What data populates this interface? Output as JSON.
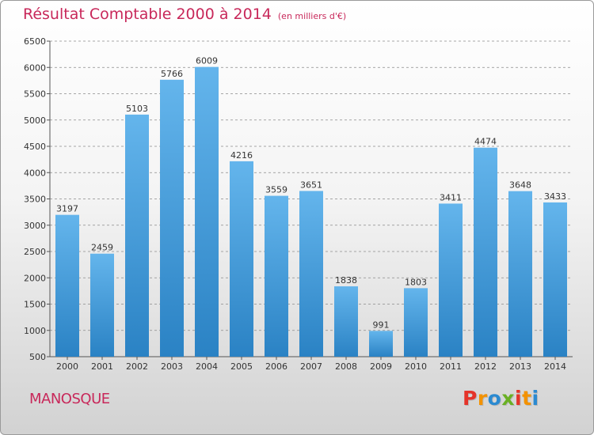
{
  "header": {
    "title": "Résultat Comptable 2000 à 2014",
    "unit_note": "(en milliers d'€)"
  },
  "footer": {
    "city": "MANOSQUE",
    "brand_letters": [
      "P",
      "r",
      "o",
      "x",
      "i",
      "t",
      "i"
    ],
    "brand_colors": [
      "#e5342a",
      "#f39200",
      "#2b8ad1",
      "#6ab023",
      "#e5342a",
      "#f39200",
      "#2b8ad1"
    ]
  },
  "colors": {
    "bar_top": "#64b5ec",
    "bar_bottom": "#2a82c4",
    "title": "#c8285a",
    "grid": "#8a8a8a"
  },
  "chart_data": {
    "type": "bar",
    "title": "Résultat Comptable 2000 à 2014",
    "xlabel": "",
    "ylabel": "",
    "categories": [
      "2000",
      "2001",
      "2002",
      "2003",
      "2004",
      "2005",
      "2006",
      "2007",
      "2008",
      "2009",
      "2010",
      "2011",
      "2012",
      "2013",
      "2014"
    ],
    "values": [
      3197,
      2459,
      5103,
      5766,
      6009,
      4216,
      3559,
      3651,
      1838,
      991,
      1803,
      3411,
      4474,
      3648,
      3433
    ],
    "ylim": [
      500,
      6500
    ],
    "yticks": [
      500,
      1000,
      1500,
      2000,
      2500,
      3000,
      3500,
      4000,
      4500,
      5000,
      5500,
      6000,
      6500
    ],
    "grid": true,
    "grid_style": "dashed horizontal",
    "data_labels": true
  }
}
